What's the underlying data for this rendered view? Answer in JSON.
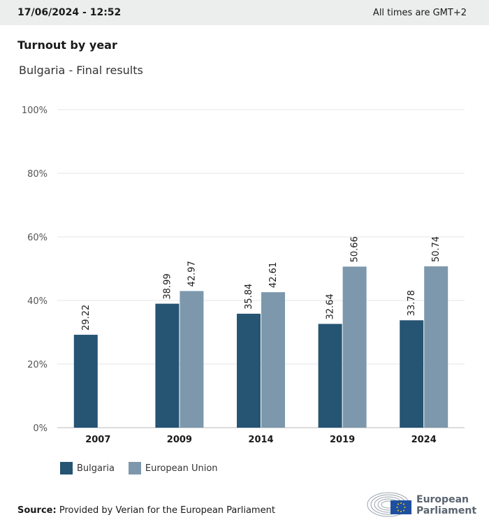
{
  "header": {
    "timestamp": "17/06/2024 - 12:52",
    "timezone_note": "All times are GMT+2"
  },
  "title": "Turnout by year",
  "subtitle": "Bulgaria - Final results",
  "colors": {
    "bulgaria": "#265473",
    "eu": "#7d98ac",
    "grid": "#e6e6e6",
    "topbar": "#eceeee"
  },
  "chart_data": {
    "type": "bar",
    "categories": [
      "2007",
      "2009",
      "2014",
      "2019",
      "2024"
    ],
    "series": [
      {
        "name": "Bulgaria",
        "values": [
          29.22,
          38.99,
          35.84,
          32.64,
          33.78
        ]
      },
      {
        "name": "European Union",
        "values": [
          null,
          42.97,
          42.61,
          50.66,
          50.74
        ]
      }
    ],
    "ylim": [
      0,
      100
    ],
    "yticks": [
      0,
      20,
      40,
      60,
      80,
      100
    ],
    "ytick_labels": [
      "0%",
      "20%",
      "40%",
      "60%",
      "80%",
      "100%"
    ],
    "grid": true,
    "legend_position": "bottom-left"
  },
  "legend": {
    "items": [
      "Bulgaria",
      "European Union"
    ]
  },
  "source": {
    "label": "Source:",
    "text": "Provided by Verian for the European Parliament"
  },
  "logo": {
    "line1": "European",
    "line2": "Parliament"
  }
}
